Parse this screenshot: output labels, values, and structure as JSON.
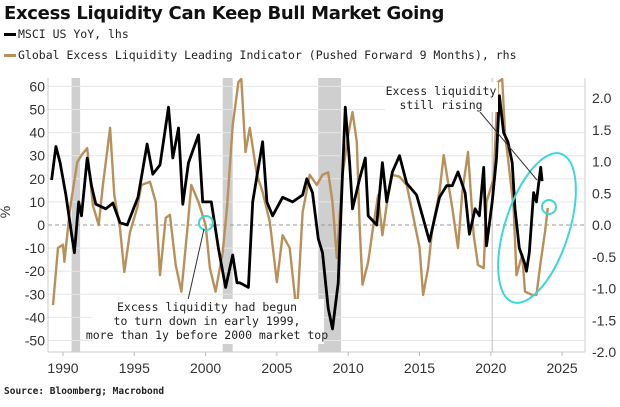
{
  "chart_data": {
    "type": "line",
    "title": "Excess Liquidity Can Keep Bull Market Going",
    "ylabel": "%",
    "xlim": [
      1988.95,
      2026.6
    ],
    "ylim_left": [
      -50,
      60
    ],
    "ylim_right": [
      -2.0,
      2.0
    ],
    "x_ticks": [
      "1990",
      "1995",
      "2000",
      "2005",
      "2010",
      "2015",
      "2020",
      "2025"
    ],
    "y_ticks_left": [
      "60",
      "50",
      "40",
      "30",
      "20",
      "10",
      "0",
      "-10",
      "-20",
      "-30",
      "-40",
      "-50"
    ],
    "y_ticks_right": [
      "2.0",
      "1.5",
      "1.0",
      "0.5",
      "0.0",
      "-0.5",
      "-1.0",
      "-1.5",
      "-2.0"
    ],
    "grid": true,
    "legend_placement": "top-left",
    "shaded_periods": [
      [
        1990.6,
        1991.2
      ],
      [
        2001.2,
        2001.9
      ],
      [
        2007.9,
        2009.5
      ]
    ],
    "series": [
      {
        "name": "MSCI US YoY, lhs",
        "axis": "left",
        "color": "#000000",
        "points": [
          [
            1989.2,
            19.5
          ],
          [
            1989.5,
            34
          ],
          [
            1989.8,
            27
          ],
          [
            1990.2,
            13
          ],
          [
            1990.6,
            -4
          ],
          [
            1990.8,
            -12
          ],
          [
            1991.1,
            10
          ],
          [
            1991.3,
            4
          ],
          [
            1991.7,
            29
          ],
          [
            1992.0,
            17
          ],
          [
            1992.3,
            9
          ],
          [
            1993.0,
            7
          ],
          [
            1993.5,
            9.5
          ],
          [
            1994.0,
            1
          ],
          [
            1994.5,
            0
          ],
          [
            1995.26,
            12
          ],
          [
            1995.9,
            35
          ],
          [
            1996.3,
            22
          ],
          [
            1996.8,
            26
          ],
          [
            1997.4,
            51
          ],
          [
            1997.7,
            29
          ],
          [
            1998.1,
            42
          ],
          [
            1998.4,
            9
          ],
          [
            1998.8,
            27
          ],
          [
            1999.5,
            39
          ],
          [
            1999.8,
            10
          ],
          [
            2000.4,
            10
          ],
          [
            2000.9,
            -10
          ],
          [
            2001.4,
            -27
          ],
          [
            2001.9,
            -13
          ],
          [
            2002.2,
            -25
          ],
          [
            2002.4,
            -25
          ],
          [
            2003.0,
            -27
          ],
          [
            2003.3,
            10
          ],
          [
            2004.0,
            36
          ],
          [
            2004.3,
            10
          ],
          [
            2004.7,
            4
          ],
          [
            2005.4,
            12
          ],
          [
            2006.1,
            10
          ],
          [
            2006.8,
            13
          ],
          [
            2007.1,
            20
          ],
          [
            2007.5,
            14
          ],
          [
            2007.9,
            -6
          ],
          [
            2008.2,
            -12
          ],
          [
            2008.6,
            -36
          ],
          [
            2008.9,
            -45
          ],
          [
            2009.3,
            -25
          ],
          [
            2009.6,
            22
          ],
          [
            2009.8,
            51
          ],
          [
            2010.1,
            27
          ],
          [
            2010.3,
            7
          ],
          [
            2010.8,
            20
          ],
          [
            2011.2,
            29
          ],
          [
            2011.4,
            4
          ],
          [
            2012.0,
            0
          ],
          [
            2012.4,
            27
          ],
          [
            2012.7,
            10
          ],
          [
            2013.1,
            23
          ],
          [
            2013.6,
            30
          ],
          [
            2014.1,
            18
          ],
          [
            2014.8,
            13
          ],
          [
            2015.2,
            4
          ],
          [
            2015.7,
            -7
          ],
          [
            2016.1,
            4
          ],
          [
            2016.4,
            12
          ],
          [
            2016.9,
            17
          ],
          [
            2017.3,
            17
          ],
          [
            2017.7,
            23
          ],
          [
            2018.2,
            14
          ],
          [
            2018.5,
            -4
          ],
          [
            2018.9,
            7
          ],
          [
            2019.2,
            4
          ],
          [
            2019.5,
            25
          ],
          [
            2019.7,
            -9
          ],
          [
            2020.1,
            10
          ],
          [
            2020.4,
            29
          ],
          [
            2020.6,
            56
          ],
          [
            2020.9,
            40
          ],
          [
            2021.2,
            36
          ],
          [
            2021.5,
            27
          ],
          [
            2021.7,
            7
          ],
          [
            2022.0,
            -10
          ],
          [
            2022.4,
            -17
          ],
          [
            2022.5,
            -20
          ],
          [
            2022.7,
            -12
          ],
          [
            2023.0,
            14
          ],
          [
            2023.2,
            10
          ],
          [
            2023.5,
            25
          ],
          [
            2023.6,
            19
          ]
        ]
      },
      {
        "name": "Global Excess Liquidity Leading Indicator (Pushed Forward 9 Months), rhs",
        "axis": "right",
        "color": "#b8905a",
        "points": [
          [
            1989.3,
            -1.26
          ],
          [
            1989.65,
            -0.36
          ],
          [
            1990.0,
            -0.31
          ],
          [
            1990.1,
            -0.58
          ],
          [
            1990.5,
            0.27
          ],
          [
            1991.0,
            0.99
          ],
          [
            1991.3,
            1.1
          ],
          [
            1991.7,
            1.21
          ],
          [
            1992.1,
            0.31
          ],
          [
            1992.5,
            0.0
          ],
          [
            1992.8,
            0.63
          ],
          [
            1993.3,
            1.53
          ],
          [
            1993.6,
            0.47
          ],
          [
            1994.0,
            -0.05
          ],
          [
            1994.3,
            -0.74
          ],
          [
            1994.7,
            -0.11
          ],
          [
            1995.2,
            0.27
          ],
          [
            1995.5,
            0.63
          ],
          [
            1996.1,
            0.68
          ],
          [
            1996.5,
            0.36
          ],
          [
            1996.8,
            -0.79
          ],
          [
            1997.2,
            0.11
          ],
          [
            1997.5,
            0.16
          ],
          [
            1997.9,
            -0.63
          ],
          [
            1998.3,
            -1.05
          ],
          [
            1998.7,
            -0.11
          ],
          [
            1999.0,
            0.63
          ],
          [
            1999.5,
            0.36
          ],
          [
            2000.0,
            0.0
          ],
          [
            2000.3,
            -0.68
          ],
          [
            2000.7,
            -1.05
          ],
          [
            2001.2,
            -0.43
          ],
          [
            2001.5,
            0.27
          ],
          [
            2001.9,
            1.57
          ],
          [
            2002.3,
            2.25
          ],
          [
            2002.5,
            2.3
          ],
          [
            2002.8,
            1.15
          ],
          [
            2003.1,
            1.53
          ],
          [
            2003.6,
            0.79
          ],
          [
            2004.0,
            0.52
          ],
          [
            2004.5,
            0.05
          ],
          [
            2005.0,
            -0.9
          ],
          [
            2005.4,
            -0.16
          ],
          [
            2005.9,
            -0.36
          ],
          [
            2006.4,
            -1.42
          ],
          [
            2006.8,
            0.2
          ],
          [
            2007.3,
            0.79
          ],
          [
            2007.8,
            0.63
          ],
          [
            2008.2,
            0.79
          ],
          [
            2008.6,
            0.83
          ],
          [
            2008.9,
            0.36
          ],
          [
            2009.2,
            -0.52
          ],
          [
            2009.6,
            0.79
          ],
          [
            2010.0,
            1.42
          ],
          [
            2010.3,
            1.78
          ],
          [
            2010.6,
            1.31
          ],
          [
            2010.8,
            0.0
          ],
          [
            2011.0,
            -0.94
          ],
          [
            2011.4,
            -0.58
          ],
          [
            2011.7,
            -0.11
          ],
          [
            2012.1,
            0.47
          ],
          [
            2012.4,
            -0.16
          ],
          [
            2012.8,
            0.47
          ],
          [
            2013.1,
            0.79
          ],
          [
            2013.6,
            0.76
          ],
          [
            2014.1,
            0.63
          ],
          [
            2014.5,
            0.2
          ],
          [
            2015.0,
            -0.35
          ],
          [
            2015.25,
            -1.1
          ],
          [
            2015.6,
            -0.68
          ],
          [
            2015.9,
            -0.05
          ],
          [
            2016.4,
            0.52
          ],
          [
            2016.7,
            1.1
          ],
          [
            2017.0,
            0.68
          ],
          [
            2017.3,
            0.27
          ],
          [
            2017.7,
            -0.36
          ],
          [
            2018.0,
            0.52
          ],
          [
            2018.4,
            1.15
          ],
          [
            2018.8,
            -0.16
          ],
          [
            2019.1,
            -0.63
          ],
          [
            2019.5,
            -0.68
          ],
          [
            2019.7,
            0.36
          ],
          [
            2020.2,
            0.74
          ],
          [
            2020.5,
            2.25
          ],
          [
            2020.8,
            2.3
          ],
          [
            2021.0,
            1.42
          ],
          [
            2021.2,
            1.06
          ],
          [
            2021.6,
            0.27
          ],
          [
            2021.8,
            -0.79
          ],
          [
            2022.2,
            -0.47
          ],
          [
            2022.4,
            -1.05
          ],
          [
            2022.9,
            -1.1
          ],
          [
            2023.2,
            -1.1
          ],
          [
            2023.5,
            -0.58
          ],
          [
            2023.8,
            -0.11
          ],
          [
            2024.0,
            0.27
          ]
        ]
      }
    ],
    "annotations": [
      {
        "lines": [
          "Excess liquidity",
          "still rising"
        ],
        "target": [
          2024.0,
          0.14
        ]
      },
      {
        "lines": [
          "Excess liquidity had begun",
          "to turn down in early 1999,",
          "more than 1y before 2000 market top"
        ],
        "target": [
          2000.0,
          0.0
        ]
      }
    ]
  },
  "legend": [
    {
      "label": "MSCI US YoY, lhs",
      "color": "#000000"
    },
    {
      "label": "Global Excess Liquidity Leading Indicator (Pushed Forward 9 Months), rhs",
      "color": "#b8905a"
    }
  ],
  "source": "Source: Bloomberg; Macrobond",
  "highlight_color": "#3fd6d6"
}
